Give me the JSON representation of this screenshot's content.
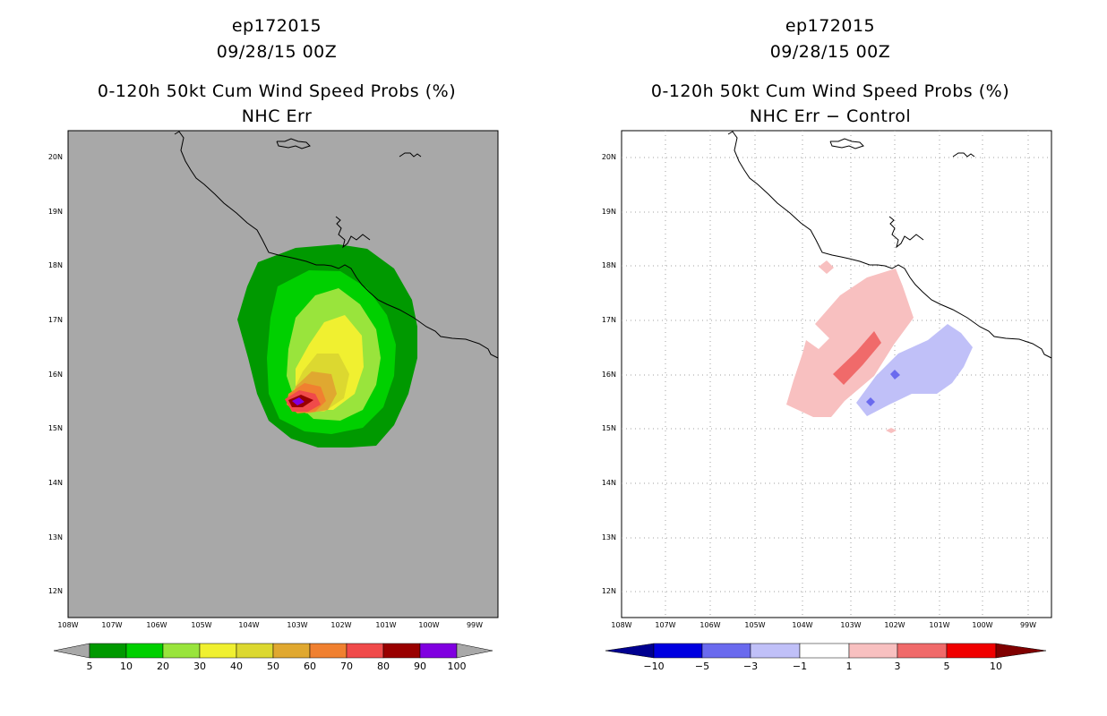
{
  "panels": [
    {
      "title_lines": [
        "ep172015",
        "09/28/15 00Z",
        "0-120h 50kt Cum Wind Speed Probs (%)",
        "NHC Err"
      ],
      "background": "#a8a8a8",
      "colorbar": {
        "labels": [
          "5",
          "10",
          "20",
          "30",
          "40",
          "50",
          "60",
          "70",
          "80",
          "90",
          "100"
        ],
        "colors": [
          "#009900",
          "#00d000",
          "#99e43c",
          "#f0f030",
          "#dcd830",
          "#e0a830",
          "#f08030",
          "#f04a4a",
          "#990000",
          "#8000e0"
        ],
        "end_color": "#a8a8a8"
      }
    },
    {
      "title_lines": [
        "ep172015",
        "09/28/15 00Z",
        "0-120h 50kt Cum Wind Speed Probs (%)",
        "NHC Err − Control"
      ],
      "background": "#ffffff",
      "colorbar": {
        "labels": [
          "−10",
          "−5",
          "−3",
          "−1",
          "1",
          "3",
          "5",
          "10"
        ],
        "colors": [
          "#0000e0",
          "#6a6aee",
          "#c0c0f8",
          "#ffffff",
          "#f8c0c0",
          "#f06a6a",
          "#f00000"
        ],
        "left_end": "#000090",
        "right_end": "#800000"
      }
    }
  ],
  "lat_labels": [
    "20N",
    "19N",
    "18N",
    "17N",
    "16N",
    "15N",
    "14N",
    "13N",
    "12N"
  ],
  "lon_labels": [
    "108W",
    "107W",
    "106W",
    "105W",
    "104W",
    "103W",
    "102W",
    "101W",
    "100W",
    "99W"
  ]
}
